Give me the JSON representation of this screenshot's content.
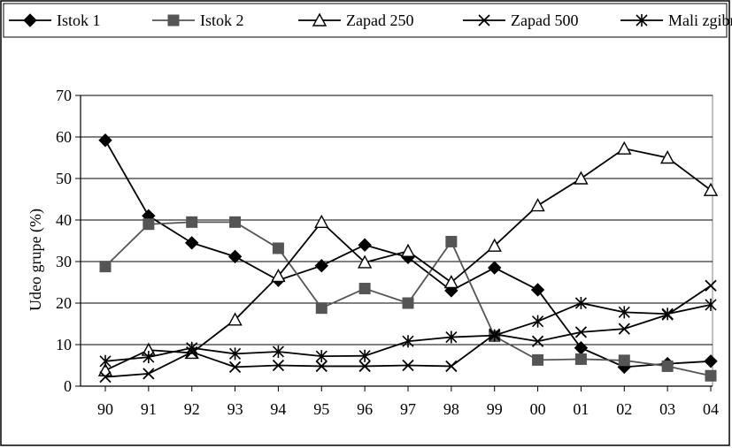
{
  "chart_data": {
    "type": "line",
    "title": "",
    "xlabel": "",
    "ylabel": "Udeo grupe (%)",
    "ylim": [
      0,
      70
    ],
    "yticks": [
      0,
      10,
      20,
      30,
      40,
      50,
      60,
      70
    ],
    "grid": "horizontal",
    "legend_position": "top",
    "categories": [
      "90",
      "91",
      "92",
      "93",
      "94",
      "95",
      "96",
      "97",
      "98",
      "99",
      "00",
      "01",
      "02",
      "03",
      "04"
    ],
    "series": [
      {
        "name": "Istok 1",
        "marker": "diamond",
        "color": "#000000",
        "values": [
          59.2,
          41.0,
          34.5,
          31.2,
          25.5,
          29.0,
          34.0,
          31.0,
          23.0,
          28.5,
          23.2,
          9.2,
          4.6,
          5.4,
          6.0
        ]
      },
      {
        "name": "Istok 2",
        "marker": "square",
        "color": "#555555",
        "values": [
          28.8,
          39.0,
          39.5,
          39.5,
          33.2,
          18.8,
          23.5,
          20.0,
          34.8,
          12.0,
          6.3,
          6.5,
          6.2,
          4.8,
          2.5
        ]
      },
      {
        "name": "Zapad 250",
        "marker": "triangle",
        "color": "#000000",
        "values": [
          3.8,
          8.7,
          8.0,
          16.0,
          26.5,
          39.5,
          29.8,
          32.5,
          25.0,
          33.8,
          43.5,
          50.0,
          57.2,
          55.0,
          47.2
        ]
      },
      {
        "name": "Zapad 500",
        "marker": "x",
        "color": "#000000",
        "values": [
          2.2,
          3.0,
          8.2,
          4.6,
          5.0,
          4.8,
          4.8,
          5.0,
          4.8,
          12.5,
          10.8,
          13.0,
          13.8,
          17.2,
          24.2
        ]
      },
      {
        "name": "Mali zgibni",
        "marker": "asterisk",
        "color": "#000000",
        "values": [
          6.0,
          7.0,
          9.2,
          7.8,
          8.3,
          7.2,
          7.3,
          10.8,
          11.8,
          12.2,
          15.6,
          20.0,
          17.8,
          17.4,
          19.6
        ]
      }
    ]
  }
}
